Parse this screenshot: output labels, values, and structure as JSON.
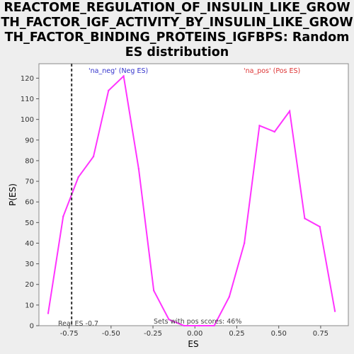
{
  "chart_data": {
    "type": "line",
    "title": "REACTOME_REGULATION_OF_INSULIN_LIKE_GROWTH_FACTOR_IGF_ACTIVITY_BY_INSULIN_LIKE_GROWTH_FACTOR_BINDING_PROTEINS_IGFBPS: Random ES distribution",
    "xlabel": "ES",
    "ylabel": "P(ES)",
    "xlim": [
      -0.93,
      0.915
    ],
    "ylim": [
      0,
      127
    ],
    "x_ticks": [
      -0.75,
      -0.5,
      -0.25,
      0.0,
      0.25,
      0.5,
      0.75
    ],
    "x_tick_labels": [
      "-0.75",
      "-0.50",
      "-0.25",
      "0.00",
      "0.25",
      "0.50",
      "0.75"
    ],
    "y_ticks": [
      0,
      10,
      20,
      30,
      40,
      50,
      60,
      70,
      80,
      90,
      100,
      110,
      120
    ],
    "grid": false,
    "series": [
      {
        "color": "#ff33ff",
        "x": [
          -0.875,
          -0.785,
          -0.695,
          -0.605,
          -0.515,
          -0.425,
          -0.335,
          -0.245,
          -0.155,
          -0.065,
          0.025,
          0.115,
          0.205,
          0.295,
          0.385,
          0.475,
          0.565,
          0.655,
          0.745,
          0.835
        ],
        "y": [
          6,
          53,
          72,
          82,
          114,
          121,
          76,
          17,
          3,
          0,
          0,
          0,
          14,
          40,
          97,
          94,
          104,
          52,
          48,
          7
        ]
      }
    ],
    "real_es": -0.735,
    "annotations": {
      "neg_label": "'na_neg' (Neg ES)",
      "pos_label": "'na_pos' (Pos ES)",
      "real_es_label": "Real ES -0.7",
      "pos_scores_label": "Sets with pos scores: 46%"
    },
    "colors": {
      "line": "#ff33ff",
      "neg_label": "#3333cc",
      "pos_label": "#dd3333",
      "plot_bg": "#ffffff",
      "page_bg": "#eeeeee"
    }
  }
}
